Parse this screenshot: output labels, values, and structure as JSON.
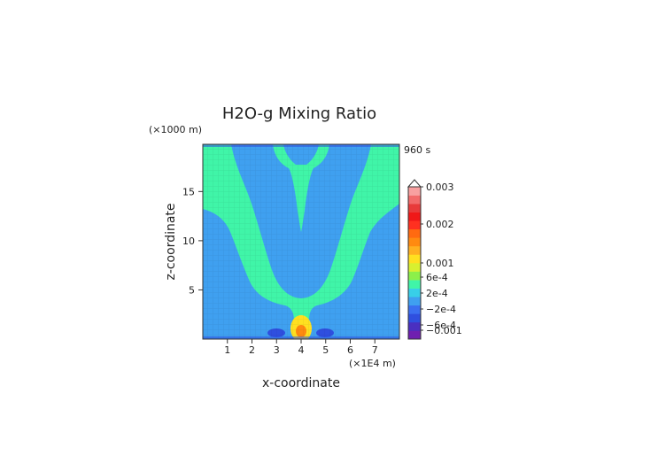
{
  "chart_data": {
    "type": "heatmap",
    "title": "H2O-g Mixing Ratio",
    "time_label": "960 s",
    "xlabel": "x-coordinate",
    "ylabel": "z-coordinate",
    "x_unit": "(×1E4 m)",
    "y_unit": "(×1000 m)",
    "xlim": [
      0,
      8
    ],
    "ylim": [
      0,
      19.8
    ],
    "x_ticks": [
      1,
      2,
      3,
      4,
      5,
      6,
      7
    ],
    "y_ticks": [
      5,
      10,
      15
    ],
    "colorbar": {
      "labels": [
        {
          "value": 0.003,
          "text": "0.003"
        },
        {
          "value": 0.002,
          "text": "0.002"
        },
        {
          "value": 0.001,
          "text": "0.001"
        },
        {
          "value": 0.0006,
          "text": "6e-4"
        },
        {
          "value": 0.0002,
          "text": "2e-4"
        },
        {
          "value": -0.0002,
          "text": "−2e-4"
        },
        {
          "value": -0.0006,
          "text": "−6e-4"
        },
        {
          "value": -0.001,
          "text": "−0.001"
        }
      ],
      "colors": [
        "#6f1fb0",
        "#4a2fc0",
        "#2f4fdf",
        "#3a6ff0",
        "#3fa0f0",
        "#38cfe8",
        "#40f5a8",
        "#8cf04a",
        "#d8f030",
        "#ffe020",
        "#ffb020",
        "#ff8a10",
        "#ff6a10",
        "#ff3020",
        "#f01818",
        "#e83a3a",
        "#f26a6a",
        "#f8a0a0"
      ]
    },
    "field_levels": {
      "background": "#3fa0f0",
      "plume": "#40f5a8",
      "yellow_core": "#ffe020",
      "orange_core": "#ff8a10",
      "negative_patch": "#2f4fdf"
    }
  }
}
